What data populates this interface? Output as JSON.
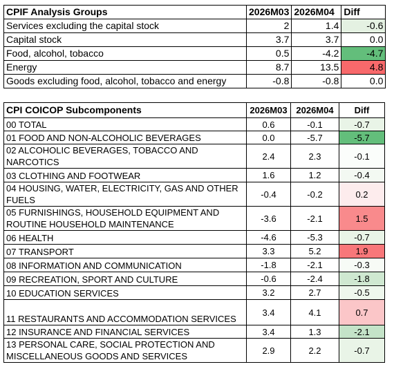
{
  "table1": {
    "header": [
      "CPIF Analysis Groups",
      "2026M03",
      "2026M04",
      "Diff"
    ],
    "rows": [
      [
        "Services excluding the capital stock",
        "2",
        "1.4",
        "-0.6"
      ],
      [
        "Capital stock",
        "3.7",
        "3.7",
        "0.0"
      ],
      [
        "Food, alcohol, tobacco",
        "0.5",
        "-4.2",
        "-4.7"
      ],
      [
        "Energy",
        "8.7",
        "13.5",
        "4.8"
      ],
      [
        "Goods excluding food, alcohol, tobacco and energy",
        "-0.8",
        "-0.8",
        "0.0"
      ]
    ],
    "diff_colors": [
      "#e4f1e2",
      "#ffffff",
      "#63be7b",
      "#f8696b",
      "#ffffff"
    ]
  },
  "table2": {
    "header": [
      "CPI COICOP Subcomponents",
      "2026M03",
      "2026M04",
      "Diff"
    ],
    "rows": [
      [
        "00 TOTAL",
        "0.6",
        "-0.1",
        "-0.7"
      ],
      [
        "01 FOOD AND NON-ALCOHOLIC BEVERAGES",
        "0.0",
        "-5.7",
        "-5.7"
      ],
      [
        "02 ALCOHOLIC BEVERAGES, TOBACCO AND NARCOTICS",
        "2.4",
        "2.3",
        "-0.1"
      ],
      [
        "03 CLOTHING AND FOOTWEAR",
        "1.6",
        "1.2",
        "-0.4"
      ],
      [
        "04 HOUSING, WATER, ELECTRICITY, GAS AND OTHER FUELS",
        "-0.4",
        "-0.2",
        "0.2"
      ],
      [
        "05 FURNISHINGS, HOUSEHOLD EQUIPMENT AND ROUTINE HOUSEHOLD MAINTENANCE",
        "-3.6",
        "-2.1",
        "1.5"
      ],
      [
        "06 HEALTH",
        "-4.6",
        "-5.3",
        "-0.7"
      ],
      [
        "07 TRANSPORT",
        "3.3",
        "5.2",
        "1.9"
      ],
      [
        "08 INFORMATION AND COMMUNICATION",
        "-1.8",
        "-2.1",
        "-0.3"
      ],
      [
        "09 RECREATION, SPORT AND CULTURE",
        "-0.6",
        "-2.4",
        "-1.8"
      ],
      [
        "10 EDUCATION SERVICES",
        "3.2",
        "2.7",
        "-0.5"
      ],
      [
        "11 RESTAURANTS AND ACCOMMODATION SERVICES",
        "3.4",
        "4.1",
        "0.7"
      ],
      [
        "12 INSURANCE AND FINANCIAL SERVICES",
        "3.4",
        "1.3",
        "-2.1"
      ],
      [
        "13 PERSONAL CARE, SOCIAL PROTECTION AND MISCELLANEOUS GOODS AND SERVICES",
        "2.9",
        "2.2",
        "-0.7"
      ]
    ],
    "diff_colors": [
      "#e9f4e7",
      "#63be7b",
      "#fbfdfb",
      "#f3f9f2",
      "#fdeced",
      "#f98a8c",
      "#e9f4e7",
      "#f8777a",
      "#f7fbf6",
      "#cfe8d1",
      "#eef7ed",
      "#fbc6c8",
      "#c4e3c8",
      "#e9f4e7"
    ]
  }
}
